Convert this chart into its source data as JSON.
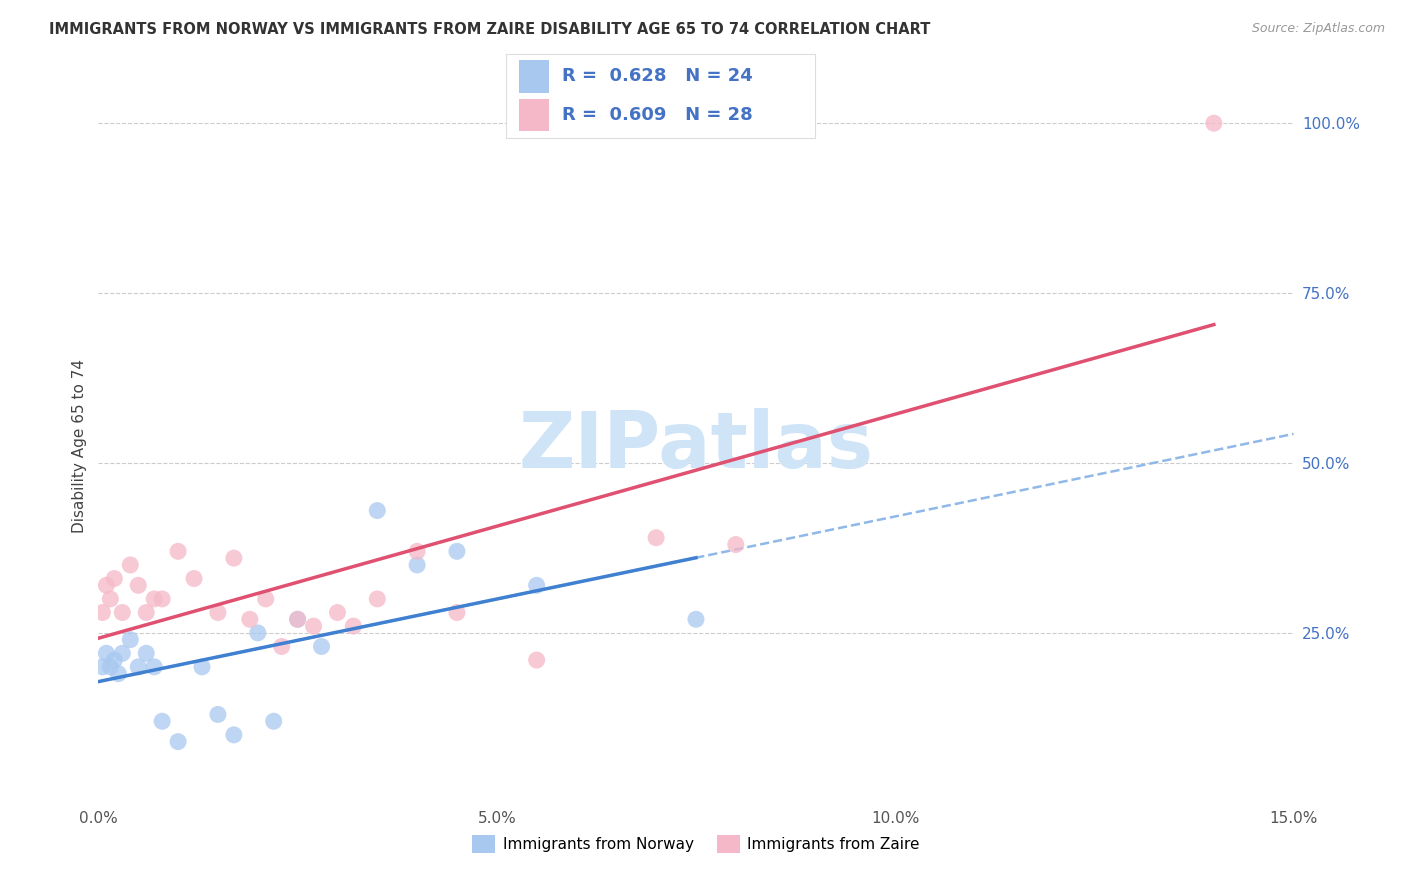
{
  "title": "IMMIGRANTS FROM NORWAY VS IMMIGRANTS FROM ZAIRE DISABILITY AGE 65 TO 74 CORRELATION CHART",
  "source": "Source: ZipAtlas.com",
  "ylabel": "Disability Age 65 to 74",
  "x_tick_values": [
    0.0,
    5.0,
    10.0,
    15.0
  ],
  "y_tick_values_right": [
    25.0,
    50.0,
    75.0,
    100.0
  ],
  "xlim": [
    0.0,
    15.0
  ],
  "ylim": [
    0.0,
    105.0
  ],
  "legend_label1": "Immigrants from Norway",
  "legend_label2": "Immigrants from Zaire",
  "R1": 0.628,
  "N1": 24,
  "R2": 0.609,
  "N2": 28,
  "color_norway": "#a8c8f0",
  "color_zaire": "#f5b8c8",
  "color_norway_line": "#4080d0",
  "color_zaire_line": "#e05070",
  "color_dashed": "#90b8e8",
  "watermark_text": "ZIPatlas",
  "watermark_color": "#d0e4f8",
  "norway_x": [
    0.05,
    0.1,
    0.15,
    0.2,
    0.25,
    0.3,
    0.4,
    0.5,
    0.6,
    0.7,
    0.8,
    1.0,
    1.3,
    1.5,
    1.7,
    2.0,
    2.2,
    2.5,
    2.8,
    3.5,
    4.0,
    4.5,
    5.5,
    7.5
  ],
  "norway_y": [
    20,
    22,
    20,
    21,
    19,
    22,
    24,
    20,
    22,
    20,
    12,
    9,
    20,
    13,
    10,
    25,
    12,
    27,
    23,
    43,
    35,
    37,
    32,
    27
  ],
  "zaire_x": [
    0.05,
    0.1,
    0.15,
    0.2,
    0.3,
    0.4,
    0.5,
    0.6,
    0.7,
    0.8,
    1.0,
    1.2,
    1.5,
    1.7,
    1.9,
    2.1,
    2.3,
    2.5,
    2.7,
    3.0,
    3.2,
    3.5,
    4.0,
    4.5,
    5.5,
    7.0,
    8.0,
    14.0
  ],
  "zaire_y": [
    28,
    32,
    30,
    33,
    28,
    35,
    32,
    28,
    30,
    30,
    37,
    33,
    28,
    36,
    27,
    30,
    23,
    27,
    26,
    28,
    26,
    30,
    37,
    28,
    21,
    39,
    38,
    100
  ],
  "norway_x_max": 7.5,
  "zaire_x_max": 14.0
}
